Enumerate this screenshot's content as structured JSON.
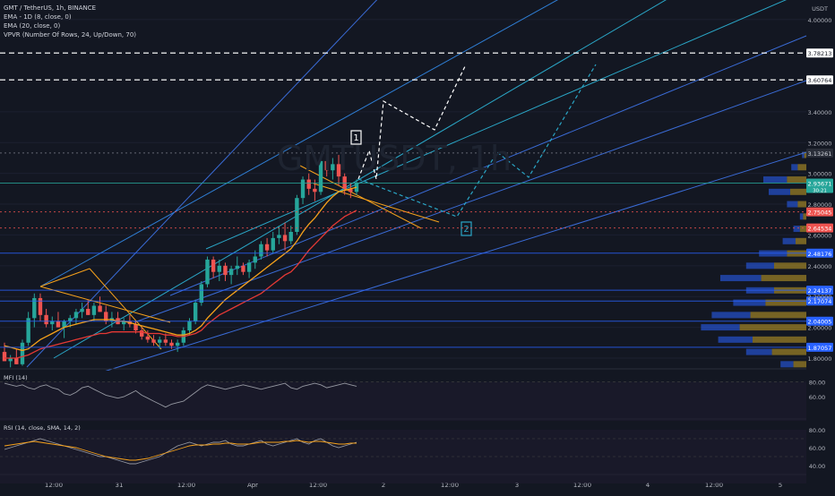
{
  "header": {
    "symbol": "GMT / TetherUS, 1h, BINANCE",
    "indicators": [
      "EMA - 1D (8, close, 0)",
      "EMA (20, close, 0)",
      "VPVR (Number Of Rows, 24, Up/Down, 70)"
    ]
  },
  "watermark": "GMTUSDT, 1h",
  "colors": {
    "up": "#26a69a",
    "down": "#ef5350",
    "ema_fast": "#f7a21b",
    "ema_slow": "#e53935",
    "vp_up": "#2962ff",
    "vp_down": "#c9a227",
    "accent": "#f2c94c"
  },
  "chart_data": [
    {
      "type": "candlestick",
      "currency": "USDT",
      "y_ticks": [
        1.8,
        2.0,
        2.2,
        2.4,
        2.6,
        2.8,
        3.0,
        3.2,
        3.4,
        4.0
      ],
      "ylim": [
        1.73,
        4.08
      ],
      "x_ticks": [
        "12:00",
        "31",
        "12:00",
        "Apr",
        "12:00",
        "2",
        "12:00",
        "3",
        "12:00",
        "4",
        "12:00",
        "5"
      ],
      "price_labels": [
        {
          "value": "3.78213",
          "style": "white"
        },
        {
          "value": "3.60764",
          "style": "white"
        },
        {
          "value": "3.13261",
          "style": "gray"
        },
        {
          "value": "2.93671",
          "sub": "30:21",
          "style": "green"
        },
        {
          "value": "2.75045",
          "style": "red"
        },
        {
          "value": "2.64534",
          "style": "red"
        },
        {
          "value": "2.48176",
          "style": "blue"
        },
        {
          "value": "2.24137",
          "style": "blue"
        },
        {
          "value": "2.17074",
          "style": "blue"
        },
        {
          "value": "2.04005",
          "style": "blue"
        },
        {
          "value": "1.87057",
          "style": "blue"
        }
      ],
      "annotations": [
        "1",
        "2"
      ],
      "candles": [
        [
          1.84,
          1.9,
          1.78,
          1.78
        ],
        [
          1.78,
          1.82,
          1.74,
          1.8
        ],
        [
          1.8,
          1.86,
          1.76,
          1.76
        ],
        [
          1.76,
          1.92,
          1.75,
          1.9
        ],
        [
          1.9,
          2.1,
          1.88,
          2.06
        ],
        [
          2.06,
          2.22,
          2.0,
          2.19
        ],
        [
          2.19,
          2.22,
          2.04,
          2.08
        ],
        [
          2.08,
          2.12,
          2.0,
          2.02
        ],
        [
          2.02,
          2.07,
          1.98,
          2.04
        ],
        [
          2.04,
          2.1,
          2.0,
          2.0
        ],
        [
          2.0,
          2.05,
          1.93,
          2.04
        ],
        [
          2.04,
          2.08,
          2.0,
          2.06
        ],
        [
          2.06,
          2.12,
          2.02,
          2.1
        ],
        [
          2.1,
          2.16,
          2.06,
          2.12
        ],
        [
          2.12,
          2.18,
          2.08,
          2.08
        ],
        [
          2.08,
          2.16,
          2.04,
          2.14
        ],
        [
          2.14,
          2.2,
          2.1,
          2.1
        ],
        [
          2.1,
          2.14,
          2.02,
          2.04
        ],
        [
          2.04,
          2.1,
          2.0,
          2.06
        ],
        [
          2.06,
          2.1,
          2.02,
          2.02
        ],
        [
          2.02,
          2.06,
          1.98,
          2.04
        ],
        [
          2.04,
          2.08,
          2.0,
          2.02
        ],
        [
          2.02,
          2.04,
          1.96,
          1.98
        ],
        [
          1.98,
          2.0,
          1.92,
          1.94
        ],
        [
          1.94,
          1.98,
          1.9,
          1.92
        ],
        [
          1.92,
          1.95,
          1.88,
          1.9
        ],
        [
          1.9,
          1.94,
          1.86,
          1.92
        ],
        [
          1.92,
          1.96,
          1.88,
          1.9
        ],
        [
          1.9,
          1.92,
          1.86,
          1.88
        ],
        [
          1.88,
          1.92,
          1.84,
          1.9
        ],
        [
          1.9,
          2.0,
          1.88,
          1.98
        ],
        [
          1.98,
          2.06,
          1.95,
          2.04
        ],
        [
          2.04,
          2.18,
          2.02,
          2.16
        ],
        [
          2.16,
          2.3,
          2.14,
          2.28
        ],
        [
          2.28,
          2.46,
          2.26,
          2.44
        ],
        [
          2.44,
          2.46,
          2.32,
          2.36
        ],
        [
          2.36,
          2.44,
          2.3,
          2.4
        ],
        [
          2.4,
          2.42,
          2.3,
          2.34
        ],
        [
          2.34,
          2.4,
          2.28,
          2.38
        ],
        [
          2.38,
          2.46,
          2.34,
          2.4
        ],
        [
          2.4,
          2.42,
          2.34,
          2.36
        ],
        [
          2.36,
          2.44,
          2.32,
          2.42
        ],
        [
          2.42,
          2.5,
          2.38,
          2.46
        ],
        [
          2.46,
          2.56,
          2.44,
          2.54
        ],
        [
          2.54,
          2.58,
          2.46,
          2.5
        ],
        [
          2.5,
          2.62,
          2.48,
          2.58
        ],
        [
          2.58,
          2.66,
          2.54,
          2.6
        ],
        [
          2.6,
          2.68,
          2.5,
          2.56
        ],
        [
          2.56,
          2.66,
          2.54,
          2.62
        ],
        [
          2.62,
          2.86,
          2.6,
          2.84
        ],
        [
          2.84,
          2.98,
          2.8,
          2.96
        ],
        [
          2.96,
          3.0,
          2.86,
          2.9
        ],
        [
          2.9,
          2.96,
          2.82,
          2.88
        ],
        [
          2.88,
          3.1,
          2.86,
          3.08
        ],
        [
          3.08,
          3.14,
          2.98,
          3.02
        ],
        [
          3.02,
          3.1,
          2.96,
          3.06
        ],
        [
          3.06,
          3.12,
          2.92,
          2.98
        ],
        [
          2.98,
          3.0,
          2.86,
          2.9
        ],
        [
          2.9,
          2.94,
          2.84,
          2.88
        ],
        [
          2.88,
          2.96,
          2.86,
          2.94
        ]
      ],
      "ema_fast": [
        1.88,
        1.87,
        1.86,
        1.85,
        1.86,
        1.89,
        1.92,
        1.94,
        1.96,
        1.98,
        2.0,
        2.01,
        2.02,
        2.03,
        2.04,
        2.05,
        2.05,
        2.05,
        2.05,
        2.04,
        2.04,
        2.03,
        2.02,
        2.01,
        2.0,
        1.99,
        1.98,
        1.97,
        1.96,
        1.95,
        1.95,
        1.96,
        1.98,
        2.01,
        2.06,
        2.1,
        2.14,
        2.18,
        2.21,
        2.24,
        2.27,
        2.3,
        2.33,
        2.36,
        2.39,
        2.42,
        2.45,
        2.48,
        2.51,
        2.56,
        2.62,
        2.67,
        2.71,
        2.76,
        2.81,
        2.85,
        2.88,
        2.89,
        2.9,
        2.91
      ],
      "ema_slow": [
        1.8,
        1.8,
        1.8,
        1.81,
        1.82,
        1.84,
        1.86,
        1.87,
        1.88,
        1.89,
        1.9,
        1.91,
        1.92,
        1.93,
        1.94,
        1.95,
        1.96,
        1.96,
        1.97,
        1.97,
        1.97,
        1.97,
        1.97,
        1.97,
        1.96,
        1.96,
        1.96,
        1.95,
        1.95,
        1.94,
        1.94,
        1.95,
        1.96,
        1.98,
        2.02,
        2.05,
        2.08,
        2.1,
        2.12,
        2.14,
        2.16,
        2.18,
        2.2,
        2.22,
        2.25,
        2.28,
        2.31,
        2.34,
        2.36,
        2.4,
        2.45,
        2.5,
        2.54,
        2.58,
        2.62,
        2.66,
        2.69,
        2.72,
        2.74,
        2.76
      ],
      "volume_profile": [
        [
          4.0,
          0.0,
          0.0
        ],
        [
          3.82,
          0.0,
          0.0
        ],
        [
          3.64,
          0.0,
          0.0
        ],
        [
          3.46,
          0.0,
          0.0
        ],
        [
          3.28,
          0.0,
          0.0
        ],
        [
          3.12,
          0.02,
          0.02
        ],
        [
          3.04,
          0.08,
          0.06
        ],
        [
          2.96,
          0.18,
          0.22
        ],
        [
          2.88,
          0.15,
          0.2
        ],
        [
          2.8,
          0.08,
          0.1
        ],
        [
          2.72,
          0.03,
          0.03
        ],
        [
          2.64,
          0.06,
          0.06
        ],
        [
          2.56,
          0.1,
          0.12
        ],
        [
          2.48,
          0.18,
          0.26
        ],
        [
          2.4,
          0.3,
          0.26
        ],
        [
          2.32,
          0.42,
          0.38
        ],
        [
          2.24,
          0.3,
          0.26
        ],
        [
          2.16,
          0.38,
          0.3
        ],
        [
          2.08,
          0.52,
          0.36
        ],
        [
          2.0,
          0.62,
          0.36
        ],
        [
          1.92,
          0.5,
          0.32
        ],
        [
          1.84,
          0.32,
          0.24
        ],
        [
          1.76,
          0.12,
          0.12
        ]
      ],
      "rsi_mfi_panel": {
        "label": "MFI (14)",
        "ticks": [
          "80.00",
          "60.00"
        ],
        "values": [
          78,
          76,
          74,
          76,
          72,
          70,
          74,
          76,
          72,
          70,
          64,
          62,
          66,
          72,
          74,
          70,
          66,
          62,
          60,
          58,
          60,
          64,
          68,
          62,
          58,
          54,
          50,
          46,
          50,
          52,
          54,
          60,
          66,
          72,
          76,
          74,
          72,
          70,
          72,
          74,
          76,
          74,
          72,
          70,
          72,
          74,
          76,
          78,
          72,
          70,
          74,
          76,
          78,
          76,
          72,
          74,
          76,
          78,
          76,
          74
        ]
      },
      "rsi_panel": {
        "label": "RSI (14, close, SMA, 14, 2)",
        "ticks": [
          "80.00",
          "60.00",
          "40.00"
        ],
        "values": [
          58,
          60,
          62,
          64,
          66,
          68,
          70,
          68,
          66,
          64,
          62,
          60,
          58,
          56,
          54,
          52,
          50,
          50,
          48,
          46,
          44,
          42,
          42,
          44,
          46,
          48,
          50,
          54,
          58,
          62,
          64,
          66,
          64,
          62,
          64,
          66,
          66,
          68,
          64,
          62,
          62,
          64,
          66,
          68,
          64,
          62,
          64,
          66,
          68,
          70,
          66,
          64,
          68,
          70,
          66,
          62,
          60,
          62,
          64,
          66
        ],
        "sma": [
          62,
          63,
          64,
          65,
          66,
          67,
          66,
          65,
          64,
          63,
          62,
          61,
          60,
          58,
          56,
          54,
          52,
          50,
          49,
          48,
          47,
          46,
          46,
          47,
          48,
          50,
          52,
          54,
          56,
          58,
          60,
          62,
          63,
          63,
          63,
          64,
          64,
          65,
          65,
          64,
          64,
          64,
          65,
          66,
          66,
          66,
          66,
          67,
          67,
          68,
          67,
          66,
          67,
          67,
          66,
          65,
          64,
          64,
          65,
          65
        ]
      }
    }
  ]
}
